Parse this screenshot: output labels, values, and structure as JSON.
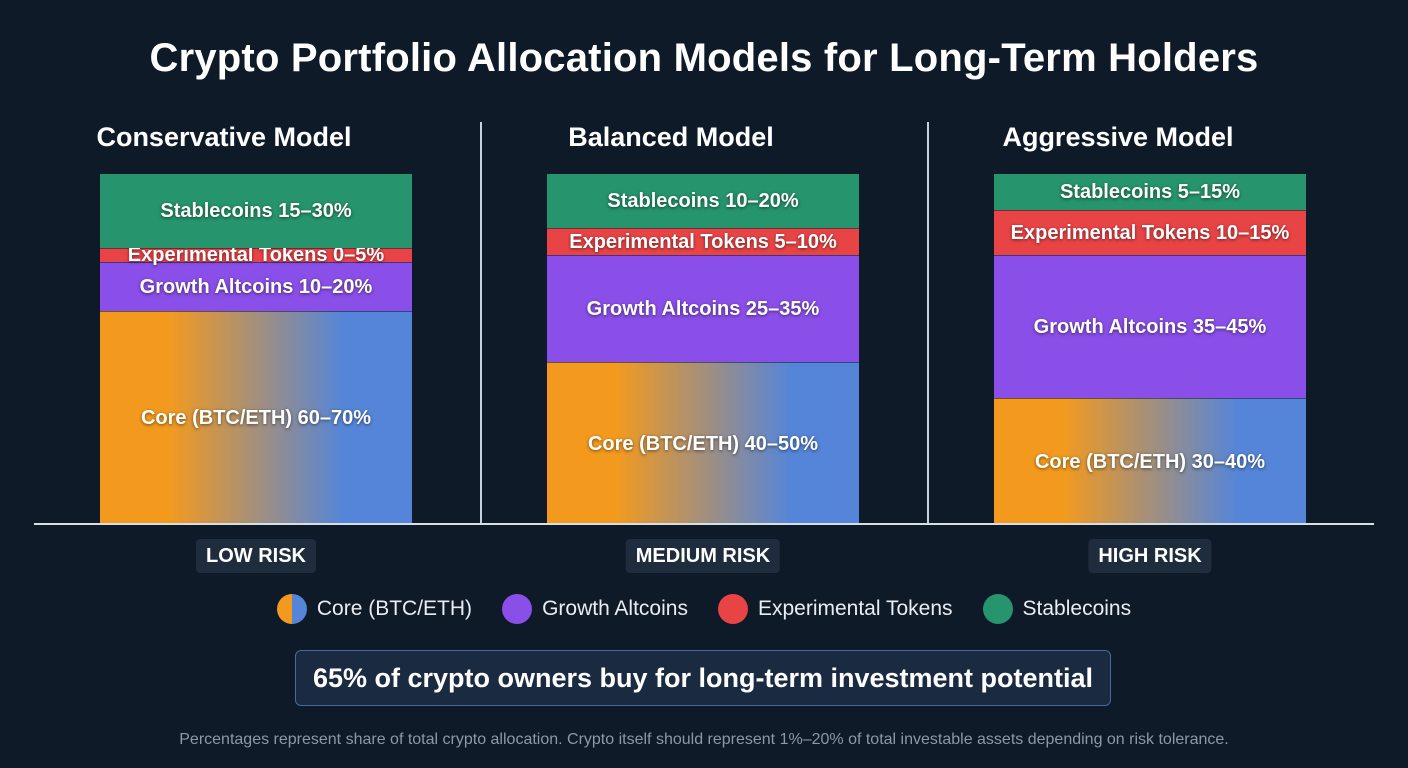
{
  "title": "Crypto Portfolio Allocation Models for Long-Term Holders",
  "colors": {
    "core_start": "#f39a1e",
    "core_end": "#5585d8",
    "growth": "#8a4fe8",
    "experimental": "#e84446",
    "stable": "#26946c",
    "background": "#0f1a28"
  },
  "legend": [
    {
      "key": "core",
      "label": "Core (BTC/ETH)"
    },
    {
      "key": "growth",
      "label": "Growth Altcoins"
    },
    {
      "key": "experimental",
      "label": "Experimental Tokens"
    },
    {
      "key": "stable",
      "label": "Stablecoins"
    }
  ],
  "callout": "65% of crypto owners buy for long-term investment potential",
  "footnote": "Percentages represent share of total crypto allocation. Crypto itself should represent 1%–20% of total investable assets depending on risk tolerance.",
  "chart_data": {
    "type": "bar",
    "stacked": true,
    "unit": "%",
    "categories": [
      "Conservative Model",
      "Balanced Model",
      "Aggressive Model"
    ],
    "risk_labels": [
      "LOW RISK",
      "MEDIUM RISK",
      "HIGH RISK"
    ],
    "series": [
      {
        "key": "core",
        "name": "Core (BTC/ETH)",
        "ranges": [
          [
            60,
            70
          ],
          [
            40,
            50
          ],
          [
            30,
            40
          ]
        ],
        "labels": [
          "Core (BTC/ETH) 60–70%",
          "Core (BTC/ETH) 40–50%",
          "Core (BTC/ETH) 30–40%"
        ]
      },
      {
        "key": "growth",
        "name": "Growth Altcoins",
        "ranges": [
          [
            10,
            20
          ],
          [
            25,
            35
          ],
          [
            35,
            45
          ]
        ],
        "labels": [
          "Growth Altcoins 10–20%",
          "Growth Altcoins 25–35%",
          "Growth Altcoins 35–45%"
        ]
      },
      {
        "key": "experimental",
        "name": "Experimental Tokens",
        "ranges": [
          [
            0,
            5
          ],
          [
            5,
            10
          ],
          [
            10,
            15
          ]
        ],
        "labels": [
          "Experimental Tokens 0–5%",
          "Experimental Tokens 5–10%",
          "Experimental Tokens 10–15%"
        ]
      },
      {
        "key": "stable",
        "name": "Stablecoins",
        "ranges": [
          [
            15,
            30
          ],
          [
            10,
            20
          ],
          [
            5,
            15
          ]
        ],
        "labels": [
          "Stablecoins 15–30%",
          "Stablecoins 10–20%",
          "Stablecoins 5–15%"
        ]
      }
    ]
  }
}
